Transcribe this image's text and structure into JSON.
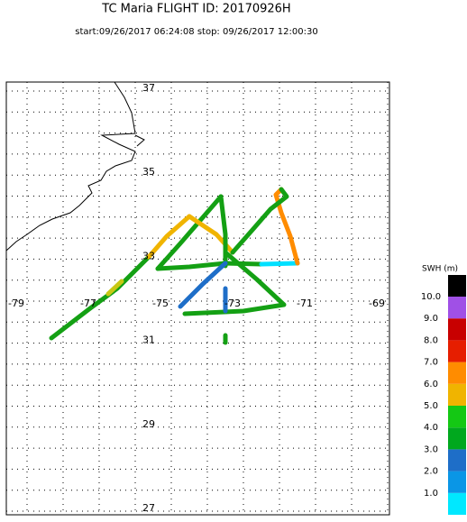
{
  "chart_data": {
    "type": "map",
    "title": "TC Maria FLIGHT ID: 20170926H",
    "subtitle": "start:09/26/2017 06:24:08 stop: 09/26/2017 12:00:30",
    "xticks": [
      -79,
      -77,
      -75,
      -73,
      -71,
      -69
    ],
    "yticks": [
      37,
      35,
      33,
      31,
      29,
      27
    ],
    "colorbar": {
      "title": "SWH (m)",
      "ticks": [
        {
          "value": 1,
          "label": "1.0"
        },
        {
          "value": 2,
          "label": "2.0"
        },
        {
          "value": 3,
          "label": "3.0"
        },
        {
          "value": 4,
          "label": "4.0"
        },
        {
          "value": 5,
          "label": "5.0"
        },
        {
          "value": 6,
          "label": "6.0"
        },
        {
          "value": 7,
          "label": "7.0"
        },
        {
          "value": 8,
          "label": "8.0"
        },
        {
          "value": 9,
          "label": "9.0"
        },
        {
          "value": 10,
          "label": "10.0"
        }
      ],
      "colors": [
        "#00e8ff",
        "#0a96e6",
        "#1e6ec8",
        "#00a81e",
        "#14c814",
        "#f0b400",
        "#ff8c00",
        "#e61e00",
        "#c80000",
        "#a050e6",
        "#000000"
      ]
    }
  }
}
